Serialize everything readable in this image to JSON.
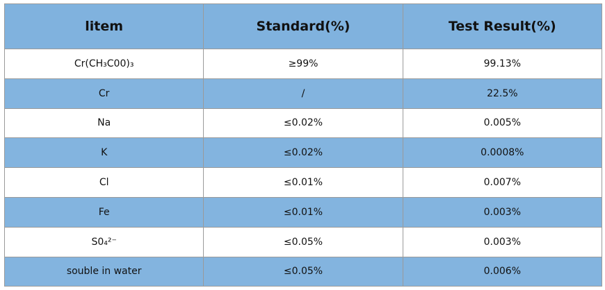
{
  "table": {
    "header": [
      "litem",
      "Standard(%)",
      "Test Result(%)"
    ],
    "rows": [
      [
        "Cr(CH₃C00)₃",
        "≥99%",
        "99.13%"
      ],
      [
        "Cr",
        "/",
        "22.5%"
      ],
      [
        "Na",
        "≤0.02%",
        "0.005%"
      ],
      [
        "K",
        "≤0.02%",
        "0.0008%"
      ],
      [
        "Cl",
        "≤0.01%",
        "0.007%"
      ],
      [
        "Fe",
        "≤0.01%",
        "0.003%"
      ],
      [
        "S0₄²⁻",
        "≤0.05%",
        "0.003%"
      ],
      [
        "souble in water",
        "≤0.05%",
        "0.006%"
      ]
    ]
  }
}
